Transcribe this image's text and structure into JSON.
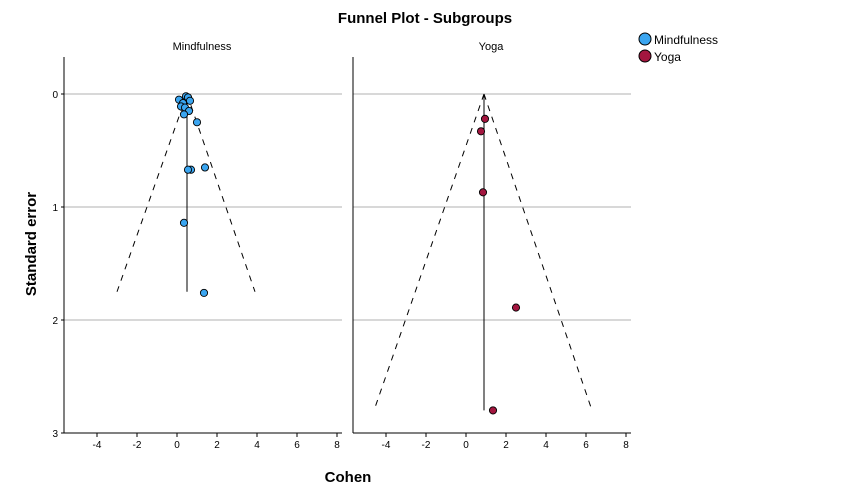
{
  "chart_data": {
    "type": "scatter",
    "title": "Funnel Plot - Subgroups",
    "xlabel": "Cohen",
    "ylabel": "Standard error",
    "xlim": [
      -6,
      8
    ],
    "ylim": [
      0,
      3
    ],
    "y_reversed": true,
    "x_ticks": [
      -4,
      -2,
      0,
      2,
      4,
      6,
      8
    ],
    "x_tick_labels": [
      "-4",
      "-2",
      "0",
      "2",
      "4",
      "6",
      "8"
    ],
    "y_ticks": [
      0,
      1,
      2,
      3
    ],
    "y_tick_labels": [
      "0",
      "1",
      "2",
      "3"
    ],
    "grid": "horizontal",
    "legend_position": "top-right",
    "panels": [
      {
        "label": "Mindfulness",
        "color": "#3aa5f0",
        "pooled_effect": 0.5,
        "pooled_line_se_max": 1.75,
        "funnel": {
          "apex_x": 0.5,
          "apex_se": 0.0,
          "left_end": [
            -3.0,
            1.75
          ],
          "right_end": [
            3.9,
            1.75
          ]
        },
        "points": [
          {
            "x": 0.45,
            "y": 0.02
          },
          {
            "x": 0.55,
            "y": 0.03
          },
          {
            "x": 0.65,
            "y": 0.06
          },
          {
            "x": 0.1,
            "y": 0.05
          },
          {
            "x": 0.3,
            "y": 0.08
          },
          {
            "x": 0.2,
            "y": 0.11
          },
          {
            "x": 0.4,
            "y": 0.12
          },
          {
            "x": 0.6,
            "y": 0.15
          },
          {
            "x": 0.35,
            "y": 0.18
          },
          {
            "x": 1.0,
            "y": 0.25
          },
          {
            "x": 1.4,
            "y": 0.65
          },
          {
            "x": 0.7,
            "y": 0.67
          },
          {
            "x": 0.55,
            "y": 0.67
          },
          {
            "x": 0.35,
            "y": 1.14
          },
          {
            "x": 1.35,
            "y": 1.76
          }
        ]
      },
      {
        "label": "Yoga",
        "color": "#a3163f",
        "pooled_effect": 0.9,
        "pooled_line_se_max": 2.8,
        "funnel": {
          "apex_x": 0.9,
          "apex_se": 0.0,
          "left_end": [
            -4.6,
            2.8
          ],
          "right_end": [
            6.3,
            2.8
          ]
        },
        "points": [
          {
            "x": 0.95,
            "y": 0.22
          },
          {
            "x": 0.75,
            "y": 0.33
          },
          {
            "x": 0.85,
            "y": 0.87
          },
          {
            "x": 2.5,
            "y": 1.89
          },
          {
            "x": 1.35,
            "y": 2.8
          }
        ]
      }
    ],
    "legend": [
      {
        "label": "Mindfulness",
        "color": "#3aa5f0"
      },
      {
        "label": "Yoga",
        "color": "#a3163f"
      }
    ]
  }
}
